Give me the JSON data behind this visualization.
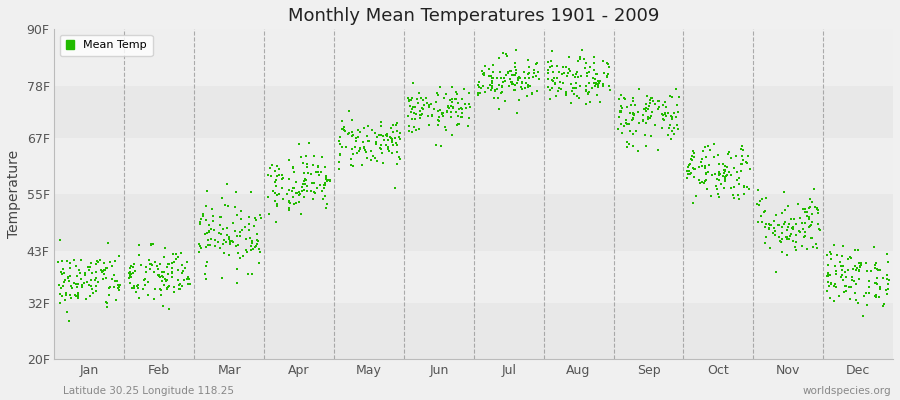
{
  "title": "Monthly Mean Temperatures 1901 - 2009",
  "ylabel": "Temperature",
  "yticks": [
    20,
    32,
    43,
    55,
    67,
    78,
    90
  ],
  "ytick_labels": [
    "20F",
    "32F",
    "43F",
    "55F",
    "67F",
    "78F",
    "90F"
  ],
  "ylim": [
    20,
    90
  ],
  "months": [
    "Jan",
    "Feb",
    "Mar",
    "Apr",
    "May",
    "Jun",
    "Jul",
    "Aug",
    "Sep",
    "Oct",
    "Nov",
    "Dec"
  ],
  "dot_color": "#22bb00",
  "background_color": "#f0f0f0",
  "legend_label": "Mean Temp",
  "footer_left": "Latitude 30.25 Longitude 118.25",
  "footer_right": "worldspecies.org",
  "num_years": 109,
  "monthly_means_f": [
    36.5,
    37.5,
    46.5,
    57.5,
    66.0,
    72.5,
    79.5,
    79.0,
    71.5,
    60.0,
    48.5,
    37.5
  ],
  "monthly_std_f": [
    3.2,
    3.2,
    3.8,
    3.2,
    2.8,
    2.5,
    2.5,
    2.5,
    3.2,
    3.2,
    3.5,
    3.2
  ]
}
